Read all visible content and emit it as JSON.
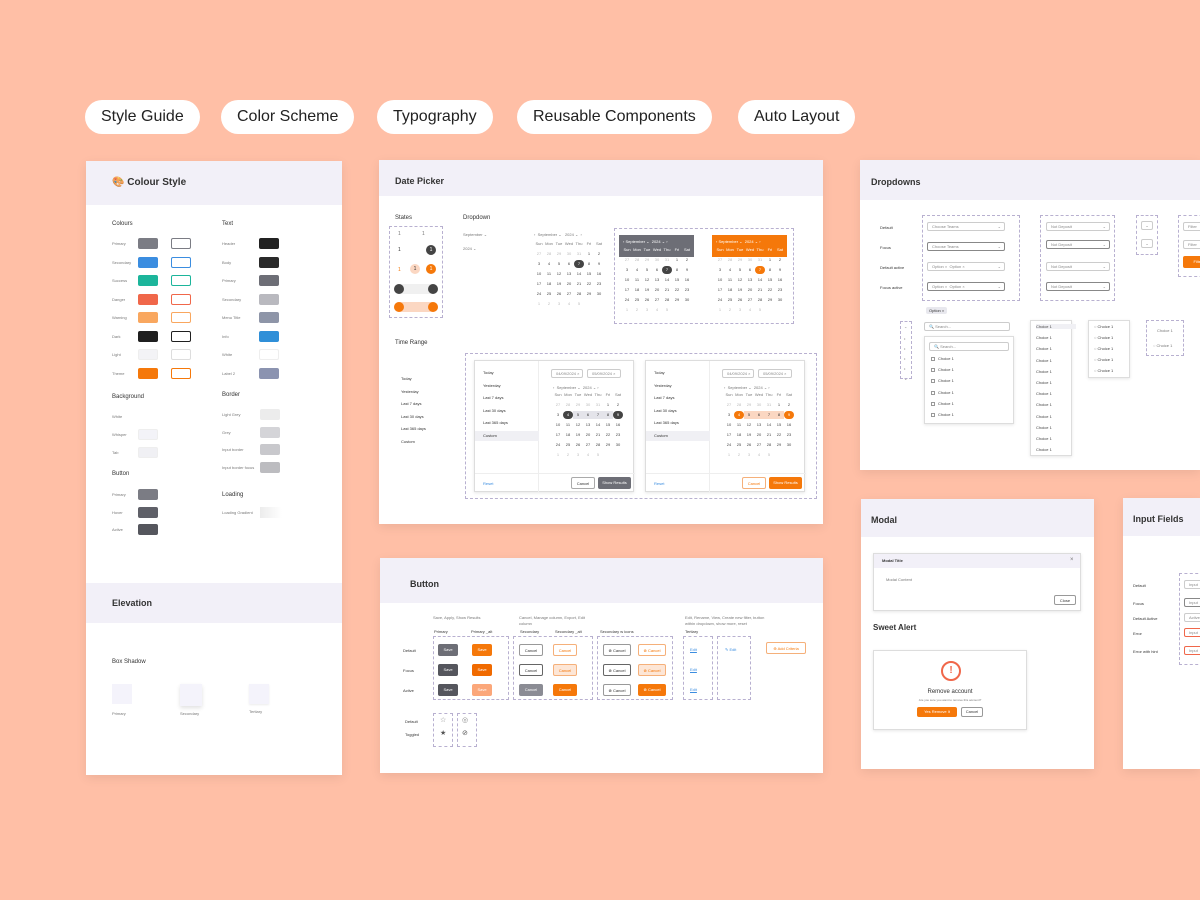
{
  "tags": [
    "Style Guide",
    "Color Scheme",
    "Typography",
    "Reusable Components",
    "Auto Layout"
  ],
  "colour_style": {
    "title": "Colour Style",
    "colours_heading": "Colours",
    "colours": [
      {
        "label": "Primary",
        "color": "#7b7c84"
      },
      {
        "label": "Secondary",
        "color": "#3b8de0"
      },
      {
        "label": "Success",
        "color": "#1cb59b"
      },
      {
        "label": "Danger",
        "color": "#f0674a"
      },
      {
        "label": "Warning",
        "color": "#f9a75f"
      },
      {
        "label": "Dark",
        "color": "#1f1f1f"
      },
      {
        "label": "Light",
        "color": "#f3f3f6"
      },
      {
        "label": "Theme",
        "color": "#f5780a"
      }
    ],
    "text_heading": "Text",
    "text": [
      {
        "label": "Header",
        "color": "#222222"
      },
      {
        "label": "Body",
        "color": "#2a2a2a"
      },
      {
        "label": "Primary",
        "color": "#6d6e76"
      },
      {
        "label": "Secondary",
        "color": "#b9b9bf"
      },
      {
        "label": "Menu Title",
        "color": "#8e95a8"
      },
      {
        "label": "Info",
        "color": "#2f8fd8"
      },
      {
        "label": "White",
        "color": "#ffffff"
      },
      {
        "label": "Label 2",
        "color": "#8b93b0"
      }
    ],
    "background_heading": "Background",
    "background": [
      {
        "label": "White",
        "color": "#ffffff"
      },
      {
        "label": "Whisper",
        "color": "#f3f3f8"
      },
      {
        "label": "Tab",
        "color": "#f0f0f4"
      }
    ],
    "border_heading": "Border",
    "border": [
      {
        "label": "Light Grey",
        "color": "#ececec"
      },
      {
        "label": "Grey",
        "color": "#d4d4d8"
      },
      {
        "label": "Input border",
        "color": "#c8c8cc"
      },
      {
        "label": "Input border focus",
        "color": "#bcbcc0"
      }
    ],
    "button_heading": "Button",
    "button": [
      {
        "label": "Primary",
        "color": "#7b7c84"
      },
      {
        "label": "Hover",
        "color": "#5f6068"
      },
      {
        "label": "Active",
        "color": "#55565d"
      }
    ],
    "loading_heading": "Loading",
    "loading_label": "Loading Gradient",
    "elevation_title": "Elevation",
    "box_shadow_heading": "Box Shadow",
    "shadows": [
      "Primary",
      "Secondary",
      "Tertiary"
    ]
  },
  "date_picker": {
    "title": "Date Picker",
    "states_label": "States",
    "dropdown_label": "Dropdown",
    "month": "September",
    "year": "2024",
    "weekdays": [
      "Sun",
      "Mon",
      "Tue",
      "Wed",
      "Thu",
      "Fri",
      "Sat"
    ],
    "days": [
      "1",
      "2",
      "3",
      "4",
      "5",
      "6",
      "7",
      "8",
      "9",
      "10",
      "11",
      "12",
      "13",
      "14",
      "15",
      "16",
      "17",
      "18",
      "19",
      "20",
      "21",
      "22",
      "23",
      "24",
      "25",
      "26",
      "27",
      "28",
      "29",
      "30",
      "1",
      "2",
      "3",
      "4",
      "5"
    ],
    "time_range_label": "Time Range",
    "ranges": [
      "Today",
      "Yesterday",
      "Last 7 days",
      "Last 30 days",
      "Last 365 days",
      "Custom"
    ],
    "date_from": "04/09/2024",
    "date_to": "05/09/2024",
    "reset": "Reset",
    "cancel": "Cancel",
    "show_results": "Show Results"
  },
  "dropdowns": {
    "title": "Dropdowns",
    "states": [
      "Default",
      "Focus",
      "Default active",
      "Focus active"
    ],
    "placeholder": "Choose Teams",
    "option": "Option",
    "not_deposit": "Not Deposit",
    "filter": "Filter",
    "search_placeholder": "Search...",
    "choice": "Choice 1"
  },
  "button_card": {
    "title": "Button",
    "group1_note": "Save, Apply, Show Results",
    "group2_note": "Cancel, Manage column, Export, Edit column",
    "group3_note": "Edit, Rename, View, Create new filter, button within dropdown, show more, reset",
    "primary": "Primary",
    "primary_alt": "Primary _alt",
    "secondary": "Secondary",
    "secondary_alt": "Secondary _alt",
    "secondary_icons": "Secondary w icons",
    "tertiary": "Tertiary",
    "rows": [
      "Default",
      "Focus",
      "Active"
    ],
    "toggle_rows": [
      "Default",
      "Toggled"
    ],
    "save": "Save",
    "cancel": "Cancel",
    "edit": "Edit",
    "add_criteria": "Add Criteria"
  },
  "modal": {
    "title": "Modal",
    "modal_title": "Modal Title",
    "modal_content": "Modal Content",
    "close": "Close",
    "sweet_alert": "Sweet Alert",
    "remove_account": "Remove account",
    "confirm_text": "Are you sure you want to remove this account?",
    "yes_remove": "Yes Remove It",
    "cancel": "Cancel"
  },
  "input_fields": {
    "title": "Input Fields",
    "states": [
      "Default",
      "Focus",
      "Default Active",
      "Error",
      "Error with hint"
    ],
    "placeholder": "Input",
    "active_value": "Active"
  }
}
